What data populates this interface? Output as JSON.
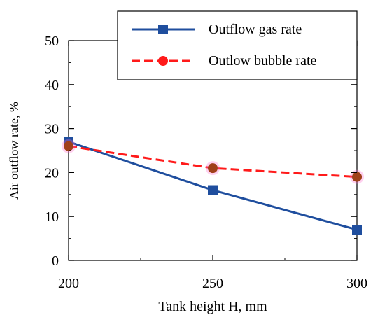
{
  "chart_data": {
    "type": "line",
    "xlabel": "Tank height H, mm",
    "ylabel": "Air outflow rate, %",
    "xlim": [
      200,
      300
    ],
    "ylim": [
      0,
      50
    ],
    "x_ticks": [
      200,
      250,
      300
    ],
    "y_ticks": [
      0,
      10,
      20,
      30,
      40,
      50
    ],
    "x": [
      200,
      250,
      300
    ],
    "grid": false,
    "legend_position": "top-right",
    "series": [
      {
        "name": "Outflow gas rate",
        "values": [
          27,
          16,
          7
        ],
        "color": "#1f4e9e",
        "line_style": "solid",
        "marker": "square"
      },
      {
        "name": "Outlow bubble rate",
        "values": [
          26,
          21,
          19
        ],
        "color": "#ff1a1a",
        "marker_color": "#a0401a",
        "marker_halo": "#ff66cc",
        "line_style": "dashed",
        "marker": "circle"
      }
    ]
  }
}
